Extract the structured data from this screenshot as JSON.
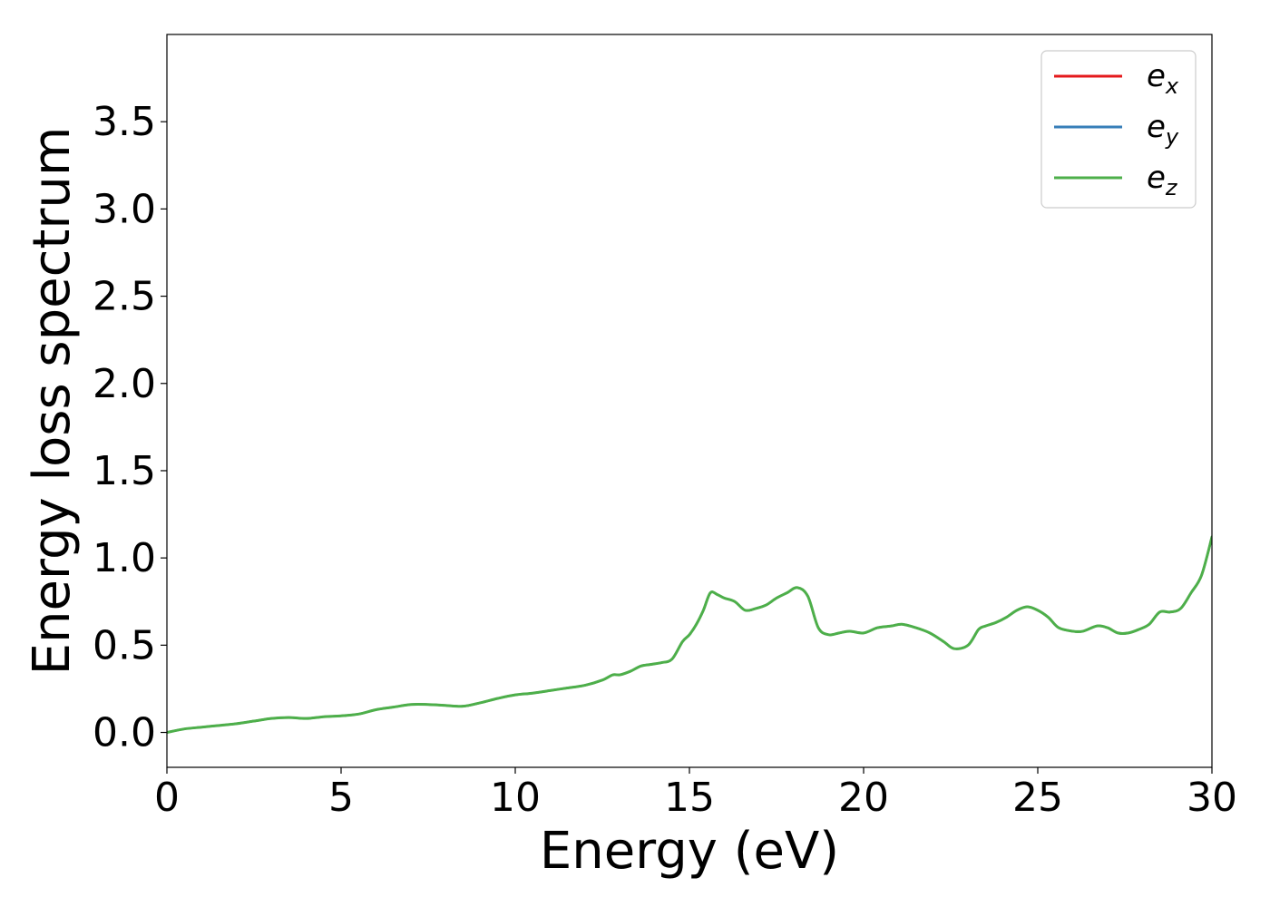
{
  "chart_data": {
    "type": "line",
    "xlabel": "Energy (eV)",
    "ylabel": "Energy loss spectrum",
    "xlim": [
      0,
      30
    ],
    "ylim": [
      -0.2,
      4.0
    ],
    "x_ticks": [
      0,
      5,
      10,
      15,
      20,
      25,
      30
    ],
    "x_tick_labels": [
      "0",
      "5",
      "10",
      "15",
      "20",
      "25",
      "30"
    ],
    "y_ticks": [
      0.0,
      0.5,
      1.0,
      1.5,
      2.0,
      2.5,
      3.0,
      3.5
    ],
    "y_tick_labels": [
      "0.0",
      "0.5",
      "1.0",
      "1.5",
      "2.0",
      "2.5",
      "3.0",
      "3.5"
    ],
    "grid": false,
    "legend_position": "top-right",
    "x": [
      0,
      0.5,
      1,
      1.5,
      2,
      2.5,
      3,
      3.5,
      4,
      4.5,
      5,
      5.5,
      6,
      6.5,
      7,
      7.5,
      8,
      8.5,
      9,
      9.5,
      10,
      10.5,
      11,
      11.5,
      12,
      12.5,
      12.8,
      13,
      13.3,
      13.6,
      13.9,
      14.2,
      14.5,
      14.8,
      15.0,
      15.2,
      15.4,
      15.6,
      15.8,
      16.0,
      16.3,
      16.6,
      16.9,
      17.2,
      17.5,
      17.8,
      18.1,
      18.4,
      18.7,
      19.0,
      19.3,
      19.6,
      20.0,
      20.4,
      20.8,
      21.1,
      21.5,
      21.9,
      22.3,
      22.6,
      23.0,
      23.3,
      23.5,
      23.8,
      24.1,
      24.4,
      24.7,
      25.0,
      25.3,
      25.6,
      26.0,
      26.3,
      26.7,
      27.0,
      27.3,
      27.6,
      27.9,
      28.2,
      28.5,
      28.8,
      29.1,
      29.4,
      29.7,
      30.0
    ],
    "series": [
      {
        "name": "e_x",
        "base": "e",
        "sub": "x",
        "color": "#e41a1c",
        "width": 2.5,
        "values": [
          0.0,
          0.02,
          0.03,
          0.04,
          0.05,
          0.065,
          0.08,
          0.085,
          0.08,
          0.09,
          0.095,
          0.105,
          0.13,
          0.145,
          0.16,
          0.16,
          0.155,
          0.15,
          0.17,
          0.195,
          0.215,
          0.225,
          0.24,
          0.255,
          0.27,
          0.3,
          0.33,
          0.33,
          0.35,
          0.38,
          0.39,
          0.4,
          0.42,
          0.52,
          0.56,
          0.62,
          0.7,
          0.8,
          0.79,
          0.77,
          0.75,
          0.7,
          0.71,
          0.73,
          0.77,
          0.8,
          0.83,
          0.78,
          0.6,
          0.56,
          0.57,
          0.58,
          0.57,
          0.6,
          0.61,
          0.62,
          0.6,
          0.57,
          0.52,
          0.48,
          0.5,
          0.59,
          0.61,
          0.63,
          0.66,
          0.7,
          0.72,
          0.7,
          0.66,
          0.6,
          0.58,
          0.58,
          0.61,
          0.6,
          0.57,
          0.57,
          0.59,
          0.62,
          0.69,
          0.69,
          0.71,
          0.8,
          0.9,
          1.12
        ]
      },
      {
        "name": "e_y",
        "base": "e",
        "sub": "y",
        "color": "#377eb8",
        "width": 2.5,
        "values": [
          0.0,
          0.02,
          0.03,
          0.04,
          0.05,
          0.065,
          0.08,
          0.085,
          0.08,
          0.09,
          0.095,
          0.105,
          0.13,
          0.145,
          0.16,
          0.16,
          0.155,
          0.15,
          0.17,
          0.195,
          0.215,
          0.225,
          0.24,
          0.255,
          0.27,
          0.3,
          0.33,
          0.33,
          0.35,
          0.38,
          0.39,
          0.4,
          0.42,
          0.52,
          0.56,
          0.62,
          0.7,
          0.8,
          0.79,
          0.77,
          0.75,
          0.7,
          0.71,
          0.73,
          0.77,
          0.8,
          0.83,
          0.78,
          0.6,
          0.56,
          0.57,
          0.58,
          0.57,
          0.6,
          0.61,
          0.62,
          0.6,
          0.57,
          0.52,
          0.48,
          0.5,
          0.59,
          0.61,
          0.63,
          0.66,
          0.7,
          0.72,
          0.7,
          0.66,
          0.6,
          0.58,
          0.58,
          0.61,
          0.6,
          0.57,
          0.57,
          0.59,
          0.62,
          0.69,
          0.69,
          0.71,
          0.8,
          0.9,
          1.12
        ]
      },
      {
        "name": "e_z",
        "base": "e",
        "sub": "z",
        "color": "#4daf4a",
        "width": 3,
        "values": [
          0.0,
          0.02,
          0.03,
          0.04,
          0.05,
          0.065,
          0.08,
          0.085,
          0.08,
          0.09,
          0.095,
          0.105,
          0.13,
          0.145,
          0.16,
          0.16,
          0.155,
          0.15,
          0.17,
          0.195,
          0.215,
          0.225,
          0.24,
          0.255,
          0.27,
          0.3,
          0.33,
          0.33,
          0.35,
          0.38,
          0.39,
          0.4,
          0.42,
          0.52,
          0.56,
          0.62,
          0.7,
          0.8,
          0.79,
          0.77,
          0.75,
          0.7,
          0.71,
          0.73,
          0.77,
          0.8,
          0.83,
          0.78,
          0.6,
          0.56,
          0.57,
          0.58,
          0.57,
          0.6,
          0.61,
          0.62,
          0.6,
          0.57,
          0.52,
          0.48,
          0.5,
          0.59,
          0.61,
          0.63,
          0.66,
          0.7,
          0.72,
          0.7,
          0.66,
          0.6,
          0.58,
          0.58,
          0.61,
          0.6,
          0.57,
          0.57,
          0.59,
          0.62,
          0.69,
          0.69,
          0.71,
          0.8,
          0.9,
          1.12
        ]
      }
    ]
  }
}
